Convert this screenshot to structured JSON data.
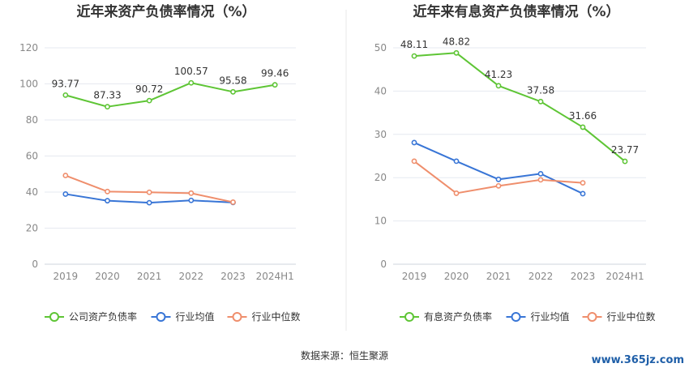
{
  "colors": {
    "company": "#5ec535",
    "avg": "#3875d6",
    "median": "#ef8e6c",
    "grid": "#e6e9f0",
    "axis": "#cfd4dc",
    "divider": "#e8e8e8"
  },
  "chart_data": [
    {
      "type": "line",
      "title": "近年来资产负债率情况（%）",
      "categories": [
        "2019",
        "2020",
        "2021",
        "2022",
        "2023",
        "2024H1"
      ],
      "ylim": [
        0,
        120
      ],
      "yticks": [
        "0",
        "20",
        "40",
        "60",
        "80",
        "100",
        "120"
      ],
      "grid": true,
      "legend_position": "bottom",
      "series": [
        {
          "name": "公司资产负债率",
          "key": "company",
          "values": [
            93.77,
            87.33,
            90.72,
            100.57,
            95.58,
            99.46
          ],
          "labels": [
            "93.77",
            "87.33",
            "90.72",
            "100.57",
            "95.58",
            "99.46"
          ]
        },
        {
          "name": "行业均值",
          "key": "avg",
          "values": [
            38.9,
            35.2,
            34.1,
            35.4,
            34.2,
            null
          ]
        },
        {
          "name": "行业中位数",
          "key": "median",
          "values": [
            49.2,
            40.3,
            39.9,
            39.4,
            34.4,
            null
          ]
        }
      ]
    },
    {
      "type": "line",
      "title": "近年来有息资产负债率情况（%）",
      "categories": [
        "2019",
        "2020",
        "2021",
        "2022",
        "2023",
        "2024H1"
      ],
      "ylim": [
        0,
        50
      ],
      "yticks": [
        "0",
        "10",
        "20",
        "30",
        "40",
        "50"
      ],
      "grid": true,
      "legend_position": "bottom",
      "series": [
        {
          "name": "有息资产负债率",
          "key": "company",
          "values": [
            48.11,
            48.82,
            41.23,
            37.58,
            31.66,
            23.77
          ],
          "labels": [
            "48.11",
            "48.82",
            "41.23",
            "37.58",
            "31.66",
            "23.77"
          ]
        },
        {
          "name": "行业均值",
          "key": "avg",
          "values": [
            28.1,
            23.8,
            19.6,
            20.9,
            16.3,
            null
          ]
        },
        {
          "name": "行业中位数",
          "key": "median",
          "values": [
            23.8,
            16.4,
            18.1,
            19.5,
            18.8,
            null
          ]
        }
      ]
    }
  ],
  "footer": {
    "source": "数据来源：恒生聚源",
    "watermark": "www.365jz.com"
  }
}
